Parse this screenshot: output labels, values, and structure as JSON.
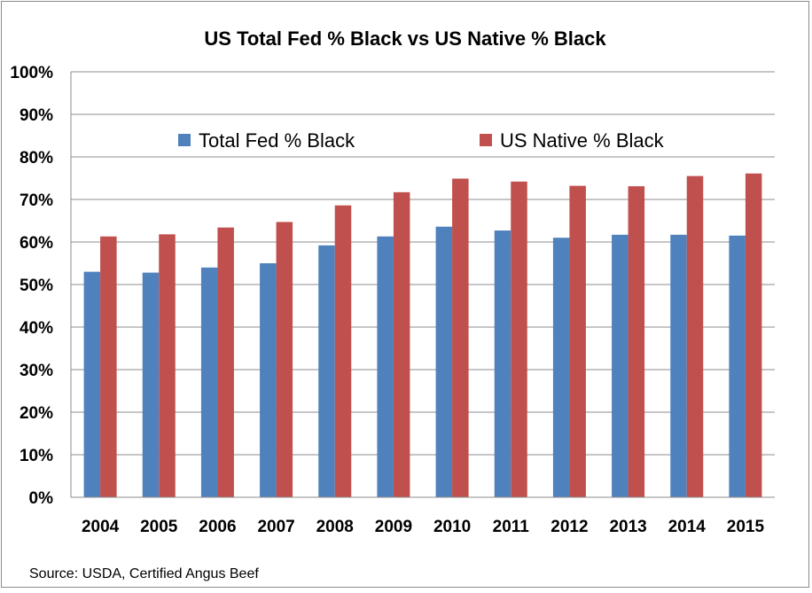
{
  "chart_data": {
    "type": "bar",
    "title": "US Total Fed % Black vs US Native % Black",
    "categories": [
      "2004",
      "2005",
      "2006",
      "2007",
      "2008",
      "2009",
      "2010",
      "2011",
      "2012",
      "2013",
      "2014",
      "2015"
    ],
    "series": [
      {
        "name": "Total Fed % Black",
        "color": "#4f81bd",
        "values": [
          53,
          52.8,
          54,
          55,
          59.2,
          61.3,
          63.6,
          62.7,
          61,
          61.7,
          61.7,
          61.5
        ]
      },
      {
        "name": "US Native % Black",
        "color": "#c0504d",
        "values": [
          61.3,
          61.8,
          63.4,
          64.7,
          68.6,
          71.7,
          74.9,
          74.2,
          73.2,
          73.1,
          75.5,
          76.1
        ]
      }
    ],
    "ylim": [
      0,
      100
    ],
    "yticks": [
      "0%",
      "10%",
      "20%",
      "30%",
      "40%",
      "50%",
      "60%",
      "70%",
      "80%",
      "90%",
      "100%"
    ],
    "xlabel": "",
    "ylabel": "",
    "grid": true,
    "legend": "top"
  },
  "source_note": "Source: USDA, Certified Angus Beef"
}
